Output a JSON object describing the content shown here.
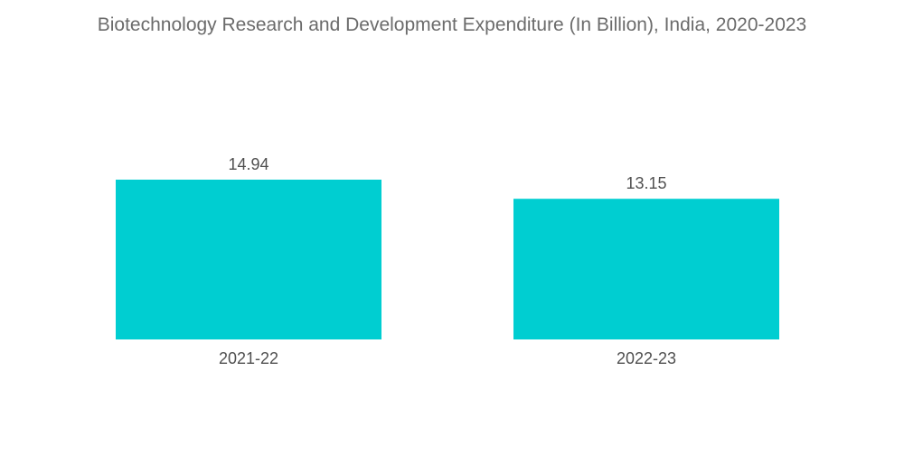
{
  "chart_data": {
    "type": "bar",
    "title": "Biotechnology Research and Development Expenditure (In Billion), India, 2020-2023",
    "categories": [
      "2021-22",
      "2022-23"
    ],
    "values": [
      14.94,
      13.15
    ],
    "value_labels": [
      "14.94",
      "13.15"
    ],
    "xlabel": "",
    "ylabel": "",
    "ylim": [
      0,
      15.5
    ],
    "grid": false,
    "legend": "none",
    "bar_color": "#00ced1"
  }
}
